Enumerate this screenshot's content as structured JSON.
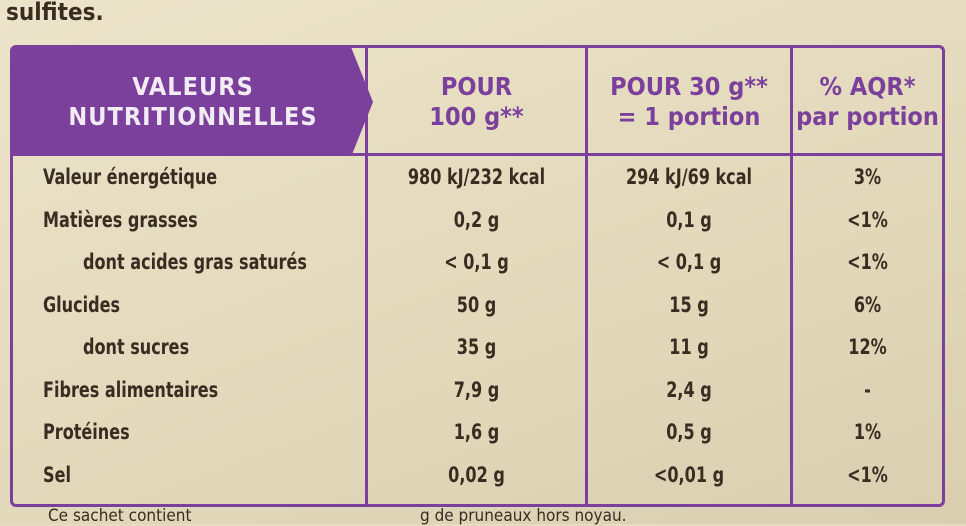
{
  "top_text": "sulfites.",
  "table": {
    "header": [
      [
        "VALEURS",
        "NUTRITIONNELLES"
      ],
      [
        "POUR",
        "100 g**"
      ],
      [
        "POUR 30 g**",
        "= 1 portion"
      ],
      [
        "% AQR*",
        "par portion"
      ]
    ],
    "rows": [
      [
        "Valeur énergétique",
        "980 kJ/232 kcal",
        "294 kJ/69 kcal",
        "3%"
      ],
      [
        "Matières grasses",
        "0,2 g",
        "0,1 g",
        "<1%"
      ],
      [
        "dont acides gras saturés",
        "< 0,1 g",
        "< 0,1 g",
        "<1%"
      ],
      [
        "Glucides",
        "50 g",
        "15 g",
        "6%"
      ],
      [
        "dont sucres",
        "35 g",
        "11 g",
        "12%"
      ],
      [
        "Fibres alimentaires",
        "7,9 g",
        "2,4 g",
        "-"
      ],
      [
        "Protéines",
        "1,6 g",
        "0,5 g",
        "1%"
      ],
      [
        "Sel",
        "0,02 g",
        "<0,01 g",
        "<1%"
      ]
    ]
  },
  "footer_fragments": [
    "Ce sachet contient",
    "g de pruneaux hors noyau."
  ]
}
